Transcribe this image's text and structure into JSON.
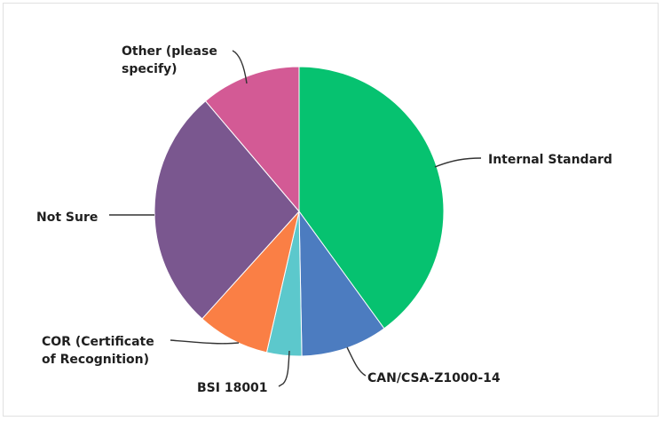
{
  "chart_data": {
    "type": "pie",
    "title": "",
    "start_angle_deg": 0,
    "direction": "clockwise",
    "slices": [
      {
        "label": "Internal Standard",
        "value": 40.0,
        "color": "#06c270"
      },
      {
        "label": "CAN/CSA-Z1000-14",
        "value": 9.7,
        "color": "#4c7cc0"
      },
      {
        "label": "BSI 18001",
        "value": 3.9,
        "color": "#5cc8cc"
      },
      {
        "label": "COR (Certificate of Recognition)",
        "value": 8.1,
        "color": "#fa7f45"
      },
      {
        "label": "Not Sure",
        "value": 27.1,
        "color": "#7a578f"
      },
      {
        "label": "Other (please specify)",
        "value": 11.2,
        "color": "#d35a95"
      }
    ]
  }
}
